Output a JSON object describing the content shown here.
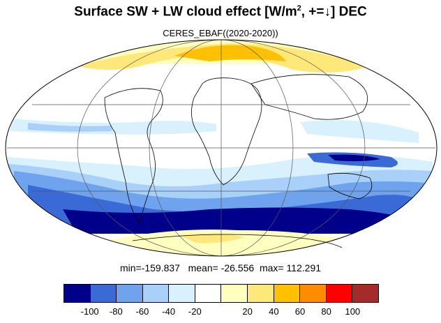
{
  "title": {
    "main": "Surface SW + LW cloud effect [W/m",
    "sup": "2",
    "tail": ", +=↓]  DEC"
  },
  "subtitle": "CERES_EBAF((2020-2020))",
  "stats": "min=-159.837   mean= -26.556  max= 112.291",
  "colorbar": {
    "colors": [
      "#00008b",
      "#3a6ad6",
      "#6fa3ee",
      "#a8d0f8",
      "#d9f0fd",
      "#ffffff",
      "#ffffbf",
      "#ffe87a",
      "#ffc000",
      "#ff8c00",
      "#ff0000",
      "#a52a2a"
    ],
    "labels": [
      "-100",
      "-80",
      "-60",
      "-40",
      "-20",
      "20",
      "40",
      "60",
      "80",
      "100"
    ]
  },
  "map_colors": {
    "ocean_boundary": "#000000",
    "graticule": "#555555",
    "coast": "#000000"
  }
}
